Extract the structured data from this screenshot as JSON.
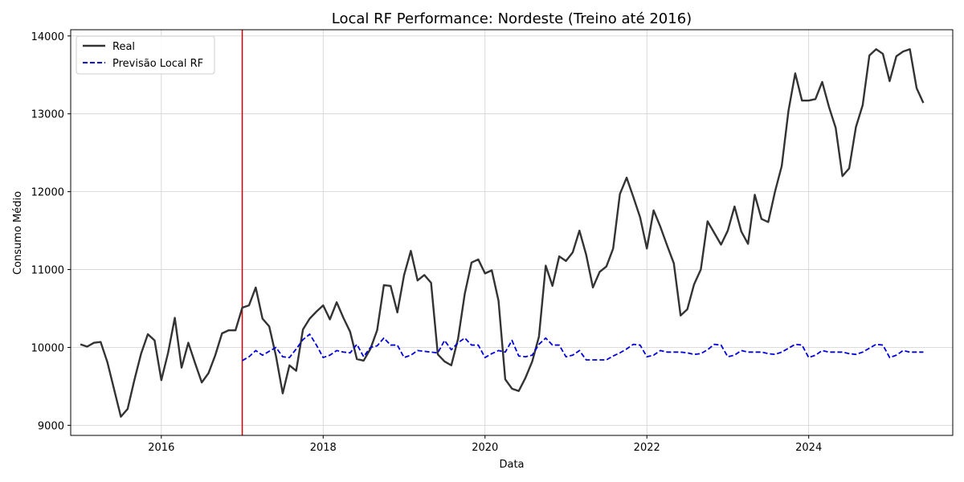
{
  "chart_data": {
    "type": "line",
    "title": "Local RF Performance: Nordeste (Treino até 2016)",
    "xlabel": "Data",
    "ylabel": "Consumo Médio",
    "xlim": [
      2014.88,
      2025.78
    ],
    "ylim": [
      8870,
      14080
    ],
    "x_ticks": [
      2016,
      2018,
      2020,
      2022,
      2024
    ],
    "y_ticks": [
      9000,
      10000,
      11000,
      12000,
      13000,
      14000
    ],
    "grid": true,
    "legend_position": "top-left",
    "split_line": {
      "x": 2017.0,
      "color": "#cc0000"
    },
    "start_year": 2015,
    "series": [
      {
        "name": "Real",
        "color": "#333333",
        "style": "solid",
        "start_index": 0,
        "values": [
          10040,
          10010,
          10060,
          10070,
          9810,
          9460,
          9110,
          9210,
          9580,
          9920,
          10170,
          10090,
          9580,
          9930,
          10380,
          9740,
          10060,
          9800,
          9550,
          9670,
          9900,
          10180,
          10220,
          10220,
          10510,
          10540,
          10770,
          10370,
          10270,
          9890,
          9410,
          9770,
          9700,
          10230,
          10370,
          10460,
          10540,
          10360,
          10580,
          10380,
          10200,
          9850,
          9830,
          9980,
          10220,
          10800,
          10790,
          10450,
          10930,
          11240,
          10860,
          10930,
          10830,
          9910,
          9820,
          9770,
          10110,
          10690,
          11090,
          11130,
          10950,
          10990,
          10600,
          9590,
          9470,
          9440,
          9610,
          9820,
          10140,
          11050,
          10790,
          11170,
          11110,
          11220,
          11500,
          11190,
          10770,
          10970,
          11040,
          11270,
          11970,
          12180,
          11930,
          11670,
          11270,
          11760,
          11550,
          11310,
          11080,
          10410,
          10490,
          10810,
          11000,
          11620,
          11470,
          11320,
          11500,
          11810,
          11490,
          11330,
          11960,
          11650,
          11610,
          12000,
          12330,
          13040,
          13520,
          13170,
          13170,
          13190,
          13410,
          13090,
          12820,
          12200,
          12300,
          12830,
          13110,
          13750,
          13830,
          13770,
          13420,
          13740,
          13800,
          13830,
          13330,
          13140
        ]
      },
      {
        "name": "Previsão Local RF",
        "color": "#0000dd",
        "style": "dashed",
        "start_index": 24,
        "values": [
          9830,
          9880,
          9960,
          9900,
          9950,
          10000,
          9880,
          9870,
          9980,
          10100,
          10170,
          10030,
          9870,
          9900,
          9960,
          9940,
          9930,
          10040,
          9880,
          10000,
          10020,
          10120,
          10030,
          10030,
          9870,
          9900,
          9960,
          9950,
          9940,
          9930,
          10090,
          9970,
          10060,
          10120,
          10030,
          10030,
          9870,
          9920,
          9960,
          9940,
          10090,
          9890,
          9880,
          9900,
          10040,
          10120,
          10030,
          10030,
          9880,
          9900,
          9960,
          9840,
          9840,
          9840,
          9840,
          9890,
          9930,
          9980,
          10040,
          10030,
          9880,
          9900,
          9960,
          9940,
          9940,
          9940,
          9930,
          9910,
          9920,
          9970,
          10040,
          10030,
          9880,
          9900,
          9960,
          9940,
          9940,
          9940,
          9920,
          9910,
          9940,
          9990,
          10040,
          10030,
          9870,
          9900,
          9960,
          9940,
          9940,
          9940,
          9920,
          9910,
          9940,
          9990,
          10040,
          10030,
          9870,
          9900,
          9960,
          9940,
          9940,
          9940
        ]
      }
    ]
  }
}
